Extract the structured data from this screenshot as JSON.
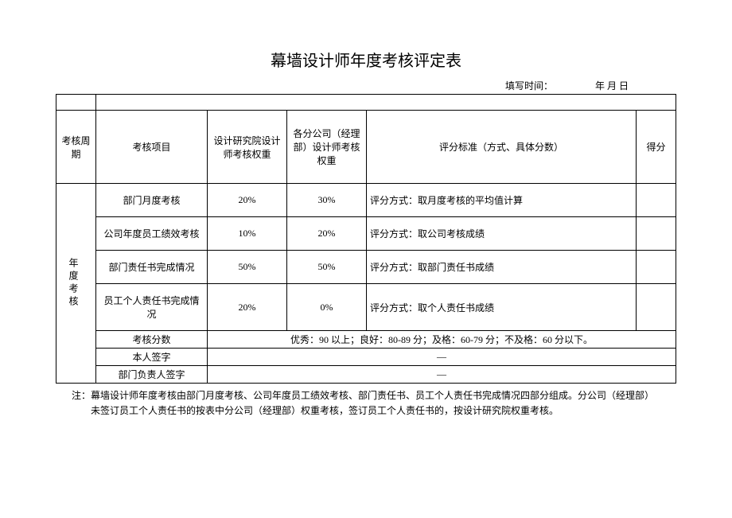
{
  "title": "幕墙设计师年度考核评定表",
  "meta": {
    "fill_time_label": "填写时间：",
    "date_label": "年 月 日"
  },
  "headers": {
    "cycle": "考核周期",
    "item": "考核项目",
    "weight1": "设计研究院设计师考核权重",
    "weight2": "各分公司（经理部）设计师考核权重",
    "standard": "评分标准（方式、具体分数）",
    "score": "得分"
  },
  "section_label": "年度考核",
  "rows": [
    {
      "item": "部门月度考核",
      "w1": "20%",
      "w2": "30%",
      "std": "评分方式：取月度考核的平均值计算"
    },
    {
      "item": "公司年度员工绩效考核",
      "w1": "10%",
      "w2": "20%",
      "std": "评分方式：取公司考核成绩"
    },
    {
      "item": "部门责任书完成情况",
      "w1": "50%",
      "w2": "50%",
      "std": "评分方式：取部门责任书成绩"
    },
    {
      "item": "员工个人责任书完成情况",
      "w1": "20%",
      "w2": "0%",
      "std": "评分方式：取个人责任书成绩"
    }
  ],
  "summary": {
    "score_label": "考核分数",
    "score_text": "优秀：90 以上；良好：80-89 分；及格：60-79 分；不及格：60 分以下。",
    "self_sign": "本人签字",
    "dept_sign": "部门负责人签字",
    "dash": "—"
  },
  "footnote": "注：幕墙设计师年度考核由部门月度考核、公司年度员工绩效考核、部门责任书、员工个人责任书完成情况四部分组成。分公司（经理部）未签订员工个人责任书的按表中分公司（经理部）权重考核，签订员工个人责任书的，按设计研究院权重考核。"
}
